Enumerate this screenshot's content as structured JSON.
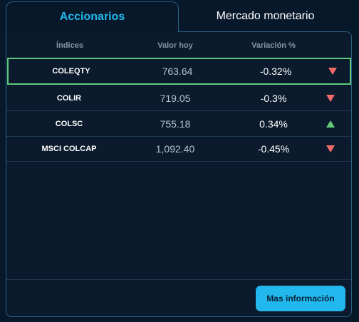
{
  "tabs": [
    {
      "label": "Accionarios",
      "active": true
    },
    {
      "label": "Mercado monetario",
      "active": false
    }
  ],
  "table": {
    "headers": [
      "Índices",
      "Valor hoy",
      "Variación %"
    ],
    "rows": [
      {
        "name": "COLEQTY",
        "value": "763.64",
        "variation": "-0.32%",
        "trend": "down",
        "selected": true
      },
      {
        "name": "COLIR",
        "value": "719.05",
        "variation": "-0.3%",
        "trend": "down",
        "selected": false
      },
      {
        "name": "COLSC",
        "value": "755.18",
        "variation": "0.34%",
        "trend": "up",
        "selected": false
      },
      {
        "name": "MSCI COLCAP",
        "value": "1,092.40",
        "variation": "-0.45%",
        "trend": "down",
        "selected": false
      }
    ]
  },
  "footer": {
    "more_button_label": "Mas información"
  },
  "colors": {
    "accent": "#22b8ee",
    "down": "#f06a6a",
    "up": "#66cc77",
    "selected_border": "#5fc87a",
    "background": "#08182b"
  }
}
